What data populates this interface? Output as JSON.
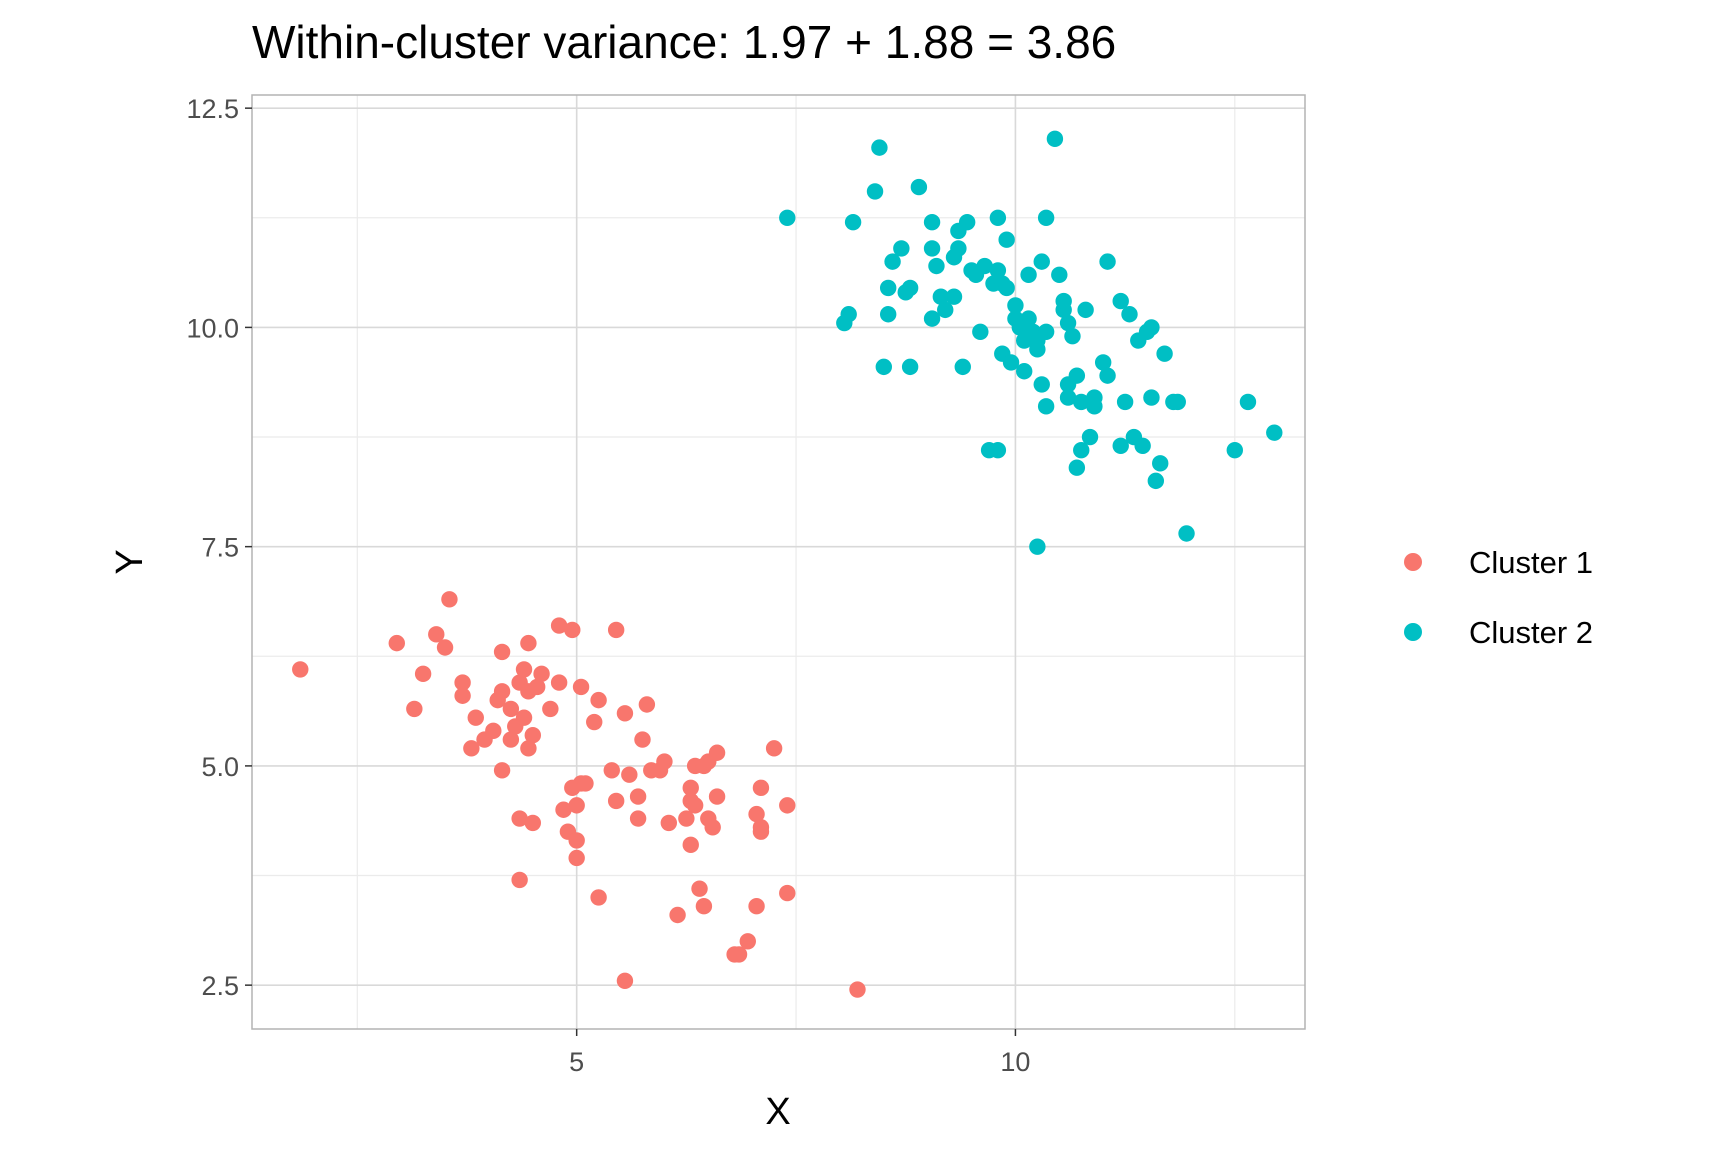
{
  "chart_data": {
    "type": "scatter",
    "title": "Within-cluster variance: 1.97 + 1.88 = 3.86",
    "xlabel": "X",
    "ylabel": "Y",
    "xlim": [
      1.3,
      13.3
    ],
    "ylim": [
      2.0,
      12.65
    ],
    "xticks": [
      5,
      10
    ],
    "xtick_labels": [
      "5",
      "10"
    ],
    "yticks": [
      2.5,
      5.0,
      7.5,
      10.0,
      12.5
    ],
    "ytick_labels": [
      "2.5",
      "5.0",
      "7.5",
      "10.0",
      "12.5"
    ],
    "grid": true,
    "legend_position": "right",
    "series": [
      {
        "name": "Cluster 1",
        "color": "#F8766D",
        "points": [
          [
            1.85,
            6.1
          ],
          [
            2.95,
            6.4
          ],
          [
            3.55,
            6.9
          ],
          [
            3.25,
            6.05
          ],
          [
            3.4,
            6.5
          ],
          [
            3.5,
            6.35
          ],
          [
            3.15,
            5.65
          ],
          [
            3.7,
            5.95
          ],
          [
            3.7,
            5.8
          ],
          [
            3.8,
            5.2
          ],
          [
            3.85,
            5.55
          ],
          [
            3.95,
            5.3
          ],
          [
            4.05,
            5.4
          ],
          [
            4.1,
            5.75
          ],
          [
            4.15,
            5.85
          ],
          [
            4.15,
            4.95
          ],
          [
            4.15,
            6.3
          ],
          [
            4.25,
            5.65
          ],
          [
            4.25,
            5.3
          ],
          [
            4.3,
            5.45
          ],
          [
            4.35,
            4.4
          ],
          [
            4.35,
            5.95
          ],
          [
            4.4,
            6.1
          ],
          [
            4.4,
            5.55
          ],
          [
            4.45,
            5.85
          ],
          [
            4.45,
            5.2
          ],
          [
            4.45,
            6.4
          ],
          [
            4.5,
            5.35
          ],
          [
            4.5,
            4.35
          ],
          [
            4.55,
            5.9
          ],
          [
            4.6,
            6.05
          ],
          [
            4.35,
            3.7
          ],
          [
            4.7,
            5.65
          ],
          [
            4.8,
            6.6
          ],
          [
            4.8,
            5.95
          ],
          [
            4.85,
            4.5
          ],
          [
            4.95,
            6.55
          ],
          [
            4.9,
            4.25
          ],
          [
            4.95,
            4.75
          ],
          [
            5.0,
            4.55
          ],
          [
            5.0,
            4.15
          ],
          [
            5.0,
            3.95
          ],
          [
            5.05,
            5.9
          ],
          [
            5.05,
            4.8
          ],
          [
            5.1,
            4.8
          ],
          [
            5.2,
            5.5
          ],
          [
            5.25,
            3.5
          ],
          [
            5.25,
            5.75
          ],
          [
            5.4,
            4.95
          ],
          [
            5.45,
            6.55
          ],
          [
            5.45,
            4.6
          ],
          [
            5.55,
            5.6
          ],
          [
            5.6,
            4.9
          ],
          [
            5.55,
            2.55
          ],
          [
            5.7,
            4.4
          ],
          [
            5.7,
            4.65
          ],
          [
            5.75,
            5.3
          ],
          [
            5.8,
            5.7
          ],
          [
            5.85,
            4.95
          ],
          [
            5.95,
            4.95
          ],
          [
            6.0,
            5.05
          ],
          [
            6.05,
            4.35
          ],
          [
            6.15,
            3.3
          ],
          [
            6.25,
            4.4
          ],
          [
            6.3,
            4.1
          ],
          [
            6.3,
            4.75
          ],
          [
            6.3,
            4.6
          ],
          [
            6.35,
            4.55
          ],
          [
            6.35,
            5.0
          ],
          [
            6.4,
            3.6
          ],
          [
            6.45,
            5.0
          ],
          [
            6.5,
            4.4
          ],
          [
            6.5,
            5.05
          ],
          [
            6.55,
            4.3
          ],
          [
            6.6,
            4.65
          ],
          [
            6.6,
            5.15
          ],
          [
            6.45,
            3.4
          ],
          [
            6.8,
            2.85
          ],
          [
            6.85,
            2.85
          ],
          [
            6.95,
            3.0
          ],
          [
            7.05,
            3.4
          ],
          [
            7.05,
            4.45
          ],
          [
            7.1,
            4.75
          ],
          [
            7.1,
            4.25
          ],
          [
            7.1,
            4.3
          ],
          [
            7.25,
            5.2
          ],
          [
            7.4,
            4.55
          ],
          [
            7.4,
            3.55
          ],
          [
            8.2,
            2.45
          ]
        ]
      },
      {
        "name": "Cluster 2",
        "color": "#00BFC4",
        "points": [
          [
            7.4,
            11.25
          ],
          [
            8.05,
            10.05
          ],
          [
            8.1,
            10.15
          ],
          [
            8.15,
            11.2
          ],
          [
            8.4,
            11.55
          ],
          [
            8.45,
            12.05
          ],
          [
            8.5,
            9.55
          ],
          [
            8.55,
            10.45
          ],
          [
            8.55,
            10.15
          ],
          [
            8.6,
            10.75
          ],
          [
            8.7,
            10.9
          ],
          [
            8.75,
            10.4
          ],
          [
            8.8,
            10.45
          ],
          [
            8.8,
            9.55
          ],
          [
            8.9,
            11.6
          ],
          [
            9.05,
            10.9
          ],
          [
            9.05,
            11.2
          ],
          [
            9.05,
            10.1
          ],
          [
            9.1,
            10.7
          ],
          [
            9.15,
            10.35
          ],
          [
            9.2,
            10.2
          ],
          [
            9.3,
            10.35
          ],
          [
            9.3,
            10.8
          ],
          [
            9.35,
            10.9
          ],
          [
            9.35,
            11.1
          ],
          [
            9.4,
            9.55
          ],
          [
            9.45,
            11.2
          ],
          [
            9.5,
            10.65
          ],
          [
            9.55,
            10.6
          ],
          [
            9.6,
            9.95
          ],
          [
            9.65,
            10.7
          ],
          [
            9.7,
            8.6
          ],
          [
            9.75,
            10.5
          ],
          [
            9.8,
            8.6
          ],
          [
            9.8,
            10.65
          ],
          [
            9.8,
            11.25
          ],
          [
            9.85,
            9.7
          ],
          [
            9.85,
            10.5
          ],
          [
            9.9,
            10.45
          ],
          [
            9.9,
            11.0
          ],
          [
            9.95,
            9.6
          ],
          [
            10.0,
            10.1
          ],
          [
            10.0,
            10.25
          ],
          [
            10.05,
            10.0
          ],
          [
            10.1,
            9.5
          ],
          [
            10.1,
            9.85
          ],
          [
            10.15,
            10.1
          ],
          [
            10.15,
            10.6
          ],
          [
            10.2,
            9.95
          ],
          [
            10.25,
            9.75
          ],
          [
            10.25,
            7.5
          ],
          [
            10.25,
            9.85
          ],
          [
            10.3,
            10.75
          ],
          [
            10.3,
            9.35
          ],
          [
            10.35,
            9.95
          ],
          [
            10.35,
            11.25
          ],
          [
            10.35,
            9.1
          ],
          [
            10.45,
            12.15
          ],
          [
            10.5,
            10.6
          ],
          [
            10.55,
            10.2
          ],
          [
            10.55,
            10.3
          ],
          [
            10.6,
            9.35
          ],
          [
            10.6,
            9.2
          ],
          [
            10.6,
            10.05
          ],
          [
            10.65,
            9.9
          ],
          [
            10.7,
            8.4
          ],
          [
            10.7,
            9.45
          ],
          [
            10.75,
            9.15
          ],
          [
            10.75,
            8.6
          ],
          [
            10.8,
            10.2
          ],
          [
            10.85,
            8.75
          ],
          [
            10.9,
            9.2
          ],
          [
            10.9,
            9.1
          ],
          [
            11.0,
            9.6
          ],
          [
            11.05,
            10.75
          ],
          [
            11.05,
            9.45
          ],
          [
            11.2,
            10.3
          ],
          [
            11.2,
            8.65
          ],
          [
            11.25,
            9.15
          ],
          [
            11.3,
            10.15
          ],
          [
            11.35,
            8.75
          ],
          [
            11.4,
            9.85
          ],
          [
            11.45,
            8.65
          ],
          [
            11.5,
            9.95
          ],
          [
            11.55,
            9.2
          ],
          [
            11.55,
            10.0
          ],
          [
            11.6,
            8.25
          ],
          [
            11.65,
            8.45
          ],
          [
            11.7,
            9.7
          ],
          [
            11.8,
            9.15
          ],
          [
            11.85,
            9.15
          ],
          [
            11.95,
            7.65
          ],
          [
            12.5,
            8.6
          ],
          [
            12.65,
            9.15
          ],
          [
            12.95,
            8.8
          ]
        ]
      }
    ]
  }
}
